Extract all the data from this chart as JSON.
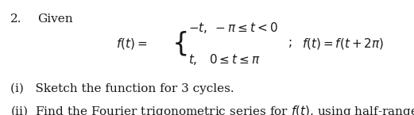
{
  "bg_color": "#ffffff",
  "text_color": "#1a1a1a",
  "font_size_main": 11,
  "number_label": "2.",
  "given_label": "Given",
  "item_i": "(i)   Sketch the function for 3 cycles.",
  "item_ii": "(ii)  Find the Fourier trigonometric series for $f(t)$, using half-range series"
}
